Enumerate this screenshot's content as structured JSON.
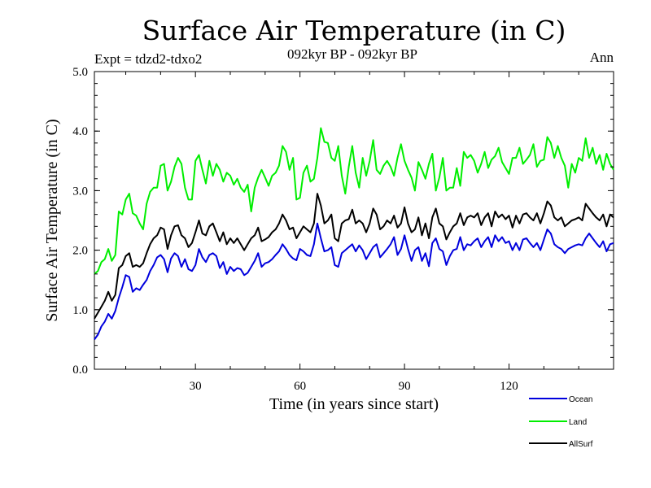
{
  "chart_data": {
    "type": "line",
    "title": "Surface Air Temperature (in C)",
    "subtitle_left": "Expt = tdzd2-tdxo2",
    "subtitle_center": "092kyr BP - 092kyr BP",
    "subtitle_right": "Ann",
    "xlabel": "Time (in years since start)",
    "ylabel": "Surface Air Temperature (in C)",
    "xlim": [
      1,
      150
    ],
    "ylim": [
      0.0,
      5.0
    ],
    "xticks": [
      30,
      60,
      90,
      120
    ],
    "xtick_labels": [
      "30",
      "60",
      "90",
      "120"
    ],
    "yticks": [
      0.0,
      1.0,
      2.0,
      3.0,
      4.0,
      5.0
    ],
    "ytick_labels": [
      "0.0",
      "1.0",
      "2.0",
      "3.0",
      "4.0",
      "5.0"
    ],
    "grid": false,
    "legend_position": "bottom-right",
    "series": [
      {
        "name": "Ocean",
        "color": "#0000dd",
        "values": [
          0.5,
          0.58,
          0.72,
          0.8,
          0.93,
          0.85,
          0.98,
          1.2,
          1.38,
          1.58,
          1.55,
          1.3,
          1.36,
          1.33,
          1.42,
          1.5,
          1.65,
          1.75,
          1.88,
          1.92,
          1.85,
          1.63,
          1.86,
          1.95,
          1.9,
          1.72,
          1.85,
          1.68,
          1.65,
          1.75,
          2.02,
          1.88,
          1.8,
          1.92,
          1.95,
          1.9,
          1.7,
          1.8,
          1.6,
          1.72,
          1.65,
          1.7,
          1.68,
          1.58,
          1.62,
          1.72,
          1.82,
          1.95,
          1.72,
          1.78,
          1.8,
          1.85,
          1.92,
          1.98,
          2.1,
          2.02,
          1.92,
          1.86,
          1.83,
          2.02,
          1.98,
          1.92,
          1.9,
          2.1,
          2.45,
          2.2,
          1.98,
          2.0,
          2.05,
          1.75,
          1.72,
          1.95,
          2.0,
          2.05,
          2.1,
          1.98,
          2.08,
          2.0,
          1.85,
          1.95,
          2.05,
          2.1,
          1.88,
          1.95,
          2.02,
          2.1,
          2.22,
          1.92,
          2.02,
          2.25,
          2.02,
          1.82,
          2.0,
          2.05,
          1.82,
          1.95,
          1.73,
          2.12,
          2.2,
          2.02,
          1.98,
          1.75,
          1.9,
          2.0,
          2.02,
          2.22,
          2.0,
          2.1,
          2.08,
          2.15,
          2.2,
          2.05,
          2.15,
          2.22,
          2.05,
          2.25,
          2.15,
          2.22,
          2.12,
          2.15,
          2.0,
          2.12,
          2.0,
          2.18,
          2.2,
          2.12,
          2.05,
          2.12,
          2.0,
          2.18,
          2.35,
          2.28,
          2.1,
          2.05,
          2.02,
          1.95,
          2.02,
          2.05,
          2.08,
          2.1,
          2.08,
          2.2,
          2.28,
          2.2,
          2.12,
          2.05,
          2.15,
          1.98,
          2.1,
          2.12
        ],
        "legend_label": "Ocean"
      },
      {
        "name": "Land",
        "color": "#00ee00",
        "values": [
          1.6,
          1.65,
          1.8,
          1.85,
          2.02,
          1.82,
          1.92,
          2.65,
          2.6,
          2.85,
          2.95,
          2.62,
          2.58,
          2.45,
          2.35,
          2.78,
          2.98,
          3.05,
          3.05,
          3.42,
          3.45,
          3.0,
          3.15,
          3.4,
          3.55,
          3.45,
          3.05,
          2.85,
          2.85,
          3.5,
          3.6,
          3.35,
          3.12,
          3.5,
          3.25,
          3.45,
          3.35,
          3.15,
          3.3,
          3.25,
          3.1,
          3.2,
          3.05,
          2.98,
          3.1,
          2.65,
          3.05,
          3.22,
          3.35,
          3.22,
          3.08,
          3.25,
          3.3,
          3.42,
          3.75,
          3.65,
          3.35,
          3.55,
          2.85,
          2.88,
          3.3,
          3.42,
          3.15,
          3.2,
          3.55,
          4.05,
          3.82,
          3.8,
          3.55,
          3.5,
          3.75,
          3.25,
          2.95,
          3.4,
          3.75,
          3.3,
          3.05,
          3.55,
          3.25,
          3.5,
          3.85,
          3.35,
          3.28,
          3.42,
          3.5,
          3.4,
          3.25,
          3.55,
          3.78,
          3.5,
          3.35,
          3.22,
          3.0,
          3.48,
          3.35,
          3.2,
          3.45,
          3.62,
          3.0,
          3.22,
          3.55,
          3.0,
          3.05,
          3.05,
          3.38,
          3.08,
          3.65,
          3.55,
          3.6,
          3.5,
          3.3,
          3.45,
          3.65,
          3.38,
          3.52,
          3.58,
          3.72,
          3.48,
          3.38,
          3.28,
          3.55,
          3.55,
          3.72,
          3.45,
          3.52,
          3.6,
          3.78,
          3.4,
          3.5,
          3.52,
          3.9,
          3.8,
          3.55,
          3.75,
          3.55,
          3.42,
          3.05,
          3.45,
          3.3,
          3.55,
          3.5,
          3.88,
          3.55,
          3.72,
          3.45,
          3.6,
          3.35,
          3.62,
          3.45,
          3.35
        ],
        "legend_label": "Land"
      },
      {
        "name": "AllSurf",
        "color": "#000000",
        "values": [
          0.85,
          0.95,
          1.05,
          1.15,
          1.3,
          1.15,
          1.25,
          1.7,
          1.75,
          1.9,
          1.95,
          1.72,
          1.75,
          1.72,
          1.78,
          1.95,
          2.1,
          2.2,
          2.25,
          2.38,
          2.35,
          2.02,
          2.25,
          2.4,
          2.42,
          2.25,
          2.2,
          2.05,
          2.12,
          2.3,
          2.5,
          2.28,
          2.25,
          2.4,
          2.45,
          2.3,
          2.15,
          2.3,
          2.1,
          2.2,
          2.12,
          2.2,
          2.1,
          2.0,
          2.1,
          2.2,
          2.25,
          2.38,
          2.15,
          2.18,
          2.22,
          2.3,
          2.35,
          2.45,
          2.6,
          2.5,
          2.35,
          2.38,
          2.2,
          2.3,
          2.4,
          2.35,
          2.3,
          2.45,
          2.95,
          2.75,
          2.45,
          2.5,
          2.6,
          2.2,
          2.15,
          2.45,
          2.5,
          2.52,
          2.68,
          2.45,
          2.5,
          2.45,
          2.3,
          2.45,
          2.7,
          2.6,
          2.35,
          2.4,
          2.5,
          2.45,
          2.58,
          2.38,
          2.45,
          2.72,
          2.45,
          2.3,
          2.35,
          2.55,
          2.25,
          2.45,
          2.2,
          2.55,
          2.7,
          2.45,
          2.4,
          2.18,
          2.3,
          2.4,
          2.45,
          2.62,
          2.42,
          2.55,
          2.58,
          2.55,
          2.62,
          2.42,
          2.55,
          2.62,
          2.4,
          2.65,
          2.55,
          2.6,
          2.52,
          2.58,
          2.38,
          2.58,
          2.45,
          2.6,
          2.62,
          2.55,
          2.5,
          2.62,
          2.45,
          2.62,
          2.82,
          2.75,
          2.55,
          2.5,
          2.55,
          2.4,
          2.45,
          2.5,
          2.52,
          2.55,
          2.5,
          2.78,
          2.7,
          2.62,
          2.55,
          2.5,
          2.6,
          2.4,
          2.6,
          2.55
        ],
        "legend_label": "AllSurf"
      }
    ]
  }
}
